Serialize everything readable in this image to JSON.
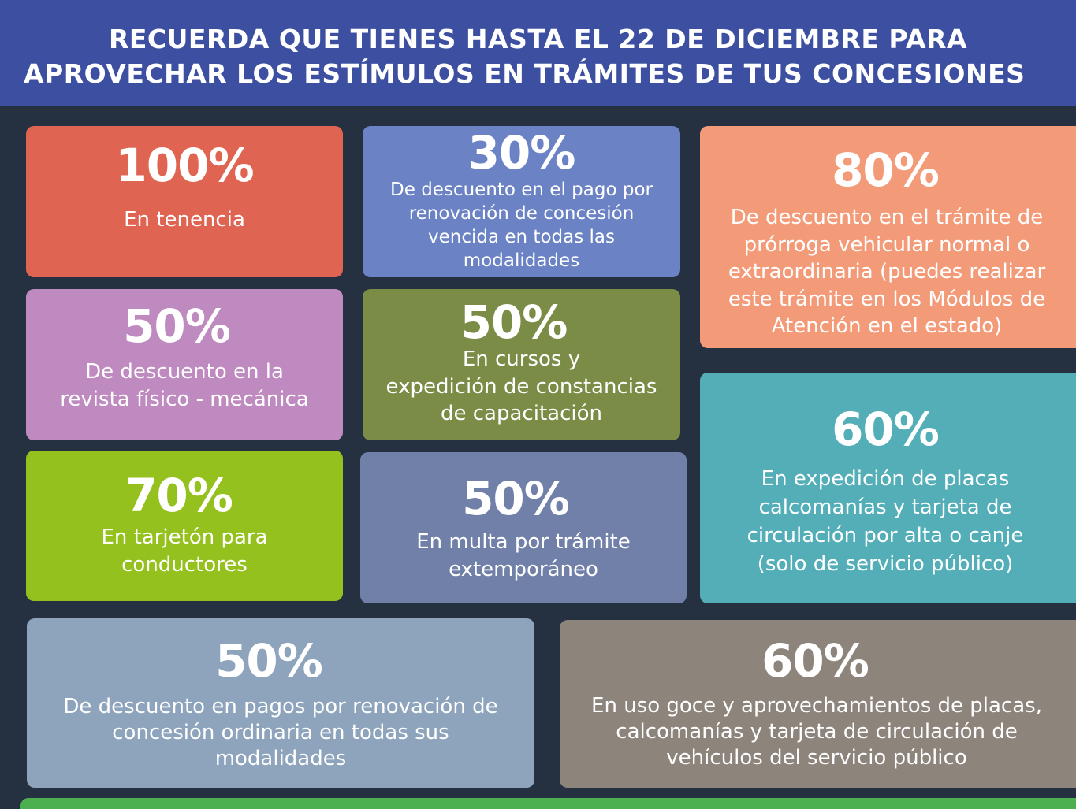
{
  "banner": {
    "line1_pre": "RECUERDA QUE TIENES HASTA EL ",
    "line1_date": "22 DE DICIEMBRE",
    "line1_post": " PARA",
    "line2": "APROVECHAR LOS ESTÍMULOS EN TRÁMITES DE TUS CONCESIONES",
    "color": "#3c4fa0"
  },
  "cards": [
    {
      "percent": "100%",
      "text": "En tenencia",
      "color": "#e06452"
    },
    {
      "percent": "30%",
      "text": "De descuento en el pago por\nrenovación de concesión\nvencida en todas las\nmodalidades",
      "color": "#6b83c5"
    },
    {
      "percent": "80%",
      "text": "De descuento en el trámite de\nprórroga vehicular normal o\nextraordinaria (puedes realizar\neste trámite en los Módulos de\nAtención en el estado)",
      "color": "#f39b78"
    },
    {
      "percent": "50%",
      "text": "De descuento en la\nrevista físico - mecánica",
      "color": "#bf8ac0"
    },
    {
      "percent": "50%",
      "text": "En cursos y\nexpedición de constancias\nde capacitación",
      "color": "#7a8c45"
    },
    {
      "percent": "70%",
      "text": "En tarjetón para\nconductores",
      "color": "#95c11f"
    },
    {
      "percent": "50%",
      "text": "En multa por trámite\nextemporáneo",
      "color": "#7180a8"
    },
    {
      "percent": "60%",
      "text": "En expedición de placas\ncalcomanías y tarjeta de\ncirculación por alta o canje\n(solo de servicio público)",
      "color": "#53aeb8"
    },
    {
      "percent": "50%",
      "text": "De descuento en pagos por renovación de\nconcesión ordinaria en todas sus\nmodalidades",
      "color": "#8ea4bc"
    },
    {
      "percent": "60%",
      "text": "En uso goce y aprovechamientos de placas,\ncalcomanías y tarjeta de circulación de\nvehículos del servicio público",
      "color": "#8d847c"
    }
  ]
}
